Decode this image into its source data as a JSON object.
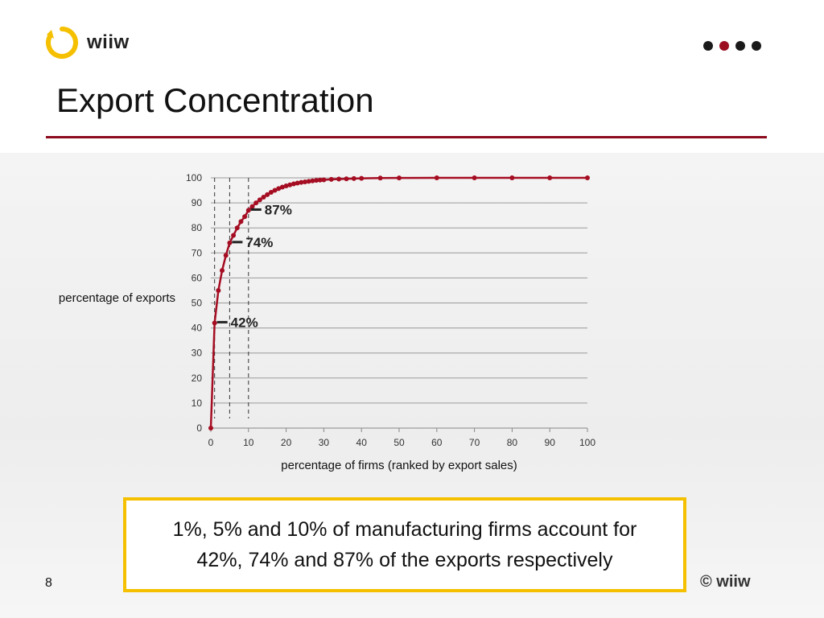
{
  "header": {
    "logo_text": "wiiw",
    "title": "Export Concentration",
    "nav_dots": [
      "#1a1a1a",
      "#9b0d1f",
      "#1a1a1a",
      "#1a1a1a"
    ]
  },
  "colors": {
    "accent": "#8b0a1c",
    "curve": "#a50d22",
    "highlight": "#f5c000"
  },
  "chart_data": {
    "type": "line",
    "title": "",
    "xlabel": "percentage of firms (ranked by export sales)",
    "ylabel": "percentage of exports",
    "xlim": [
      0,
      100
    ],
    "ylim": [
      0,
      100
    ],
    "x_ticks": [
      0,
      10,
      20,
      30,
      40,
      50,
      60,
      70,
      80,
      90,
      100
    ],
    "y_ticks": [
      0,
      10,
      20,
      30,
      40,
      50,
      60,
      70,
      80,
      90,
      100
    ],
    "grid": "horizontal",
    "series": [
      {
        "name": "",
        "x": [
          0,
          1,
          2,
          3,
          4,
          5,
          6,
          7,
          8,
          9,
          10,
          11,
          12,
          13,
          14,
          15,
          16,
          17,
          18,
          19,
          20,
          21,
          22,
          23,
          24,
          25,
          26,
          27,
          28,
          29,
          30,
          32,
          34,
          36,
          38,
          40,
          45,
          50,
          60,
          70,
          80,
          90,
          100
        ],
        "y": [
          0,
          42,
          55,
          63,
          69,
          74,
          77,
          80,
          82.5,
          84.5,
          87,
          88.5,
          90,
          91.2,
          92.3,
          93.3,
          94.2,
          95,
          95.7,
          96.3,
          96.8,
          97.2,
          97.6,
          97.9,
          98.2,
          98.4,
          98.6,
          98.8,
          99,
          99.1,
          99.2,
          99.4,
          99.5,
          99.6,
          99.7,
          99.8,
          99.9,
          99.95,
          100,
          100,
          100,
          100,
          100
        ]
      }
    ],
    "reference_lines_x": [
      1,
      5,
      10
    ],
    "annotations": [
      {
        "x": 1,
        "y": 42,
        "label": "42%"
      },
      {
        "x": 5,
        "y": 74,
        "label": "74%"
      },
      {
        "x": 10,
        "y": 87,
        "label": "87%"
      }
    ]
  },
  "callout": {
    "line1": "1%, 5% and 10% of manufacturing firms account for",
    "line2": "42%, 74% and 87% of the exports respectively"
  },
  "footer": {
    "page_number": "8",
    "copyright": "© wiiw"
  }
}
